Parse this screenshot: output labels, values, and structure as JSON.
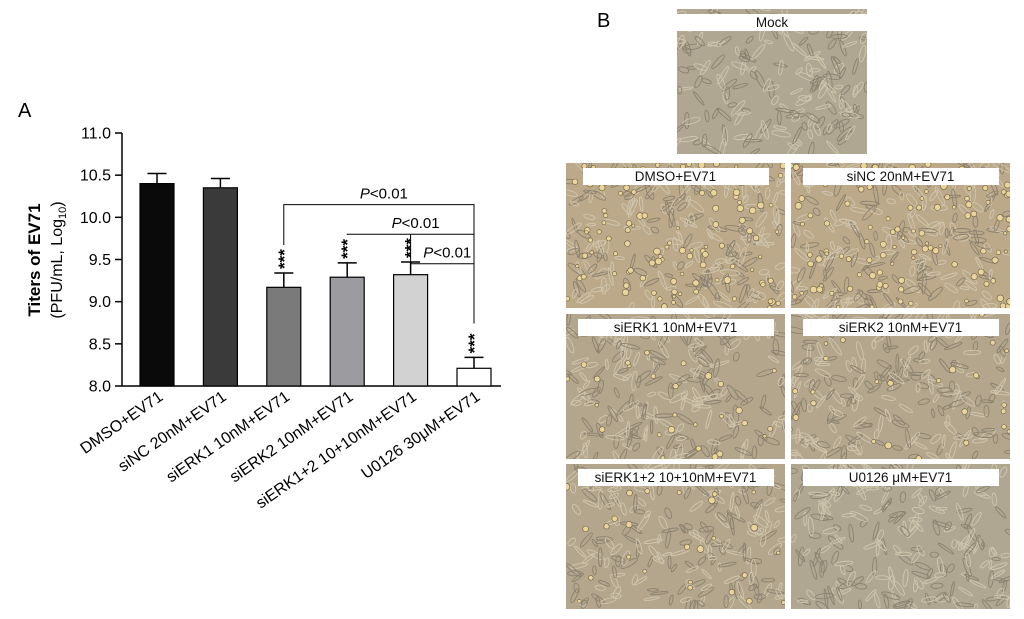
{
  "panel_a_label": "A",
  "panel_b_label": "B",
  "chart_data": {
    "type": "bar",
    "title": "",
    "ylabel_line1": "Titers of EV71",
    "ylabel_line2_main": "(PFU/mL, Log",
    "ylabel_line2_sub": "10",
    "ylabel_line2_end": ")",
    "ylim": [
      8.0,
      11.0
    ],
    "yticks": [
      "8.0",
      "8.5",
      "9.0",
      "9.5",
      "10.0",
      "10.5",
      "11.0"
    ],
    "categories": [
      "DMSO+EV71",
      "siNC 20nM+EV71",
      "siERK1 10nM+EV71",
      "siERK2 10nM+EV71",
      "siERK1+2 10+10nM+EV71",
      "U0126 30μM+EV71"
    ],
    "values": [
      10.4,
      10.35,
      9.17,
      9.29,
      9.32,
      8.21
    ],
    "errors": [
      0.12,
      0.11,
      0.17,
      0.17,
      0.15,
      0.13
    ],
    "significance": [
      "",
      "",
      "***",
      "***",
      "***",
      "***"
    ],
    "bar_colors": [
      "#0a0a0a",
      "#3a3a3a",
      "#7a7a7a",
      "#9c9ca0",
      "#d2d2d2",
      "#ffffff"
    ],
    "comparisons": [
      {
        "from": 2,
        "to": 5,
        "y": 10.15,
        "p_letter": "P",
        "p_rest": "<0.01"
      },
      {
        "from": 3,
        "to": 5,
        "y": 9.8,
        "p_letter": "P",
        "p_rest": "<0.01"
      },
      {
        "from": 4,
        "to": 5,
        "y": 9.45,
        "p_letter": "P",
        "p_rest": "<0.01"
      }
    ]
  },
  "micrographs": [
    {
      "label": "Mock",
      "tone": "healthy"
    },
    {
      "label": "DMSO+EV71",
      "tone": "infected"
    },
    {
      "label": "siNC 20nM+EV71",
      "tone": "infected"
    },
    {
      "label": "siERK1 10nM+EV71",
      "tone": "mixed"
    },
    {
      "label": "siERK2 10nM+EV71",
      "tone": "mixed"
    },
    {
      "label": "siERK1+2 10+10nM+EV71",
      "tone": "mixed"
    },
    {
      "label": "U0126 μM+EV71",
      "tone": "healthy"
    }
  ]
}
